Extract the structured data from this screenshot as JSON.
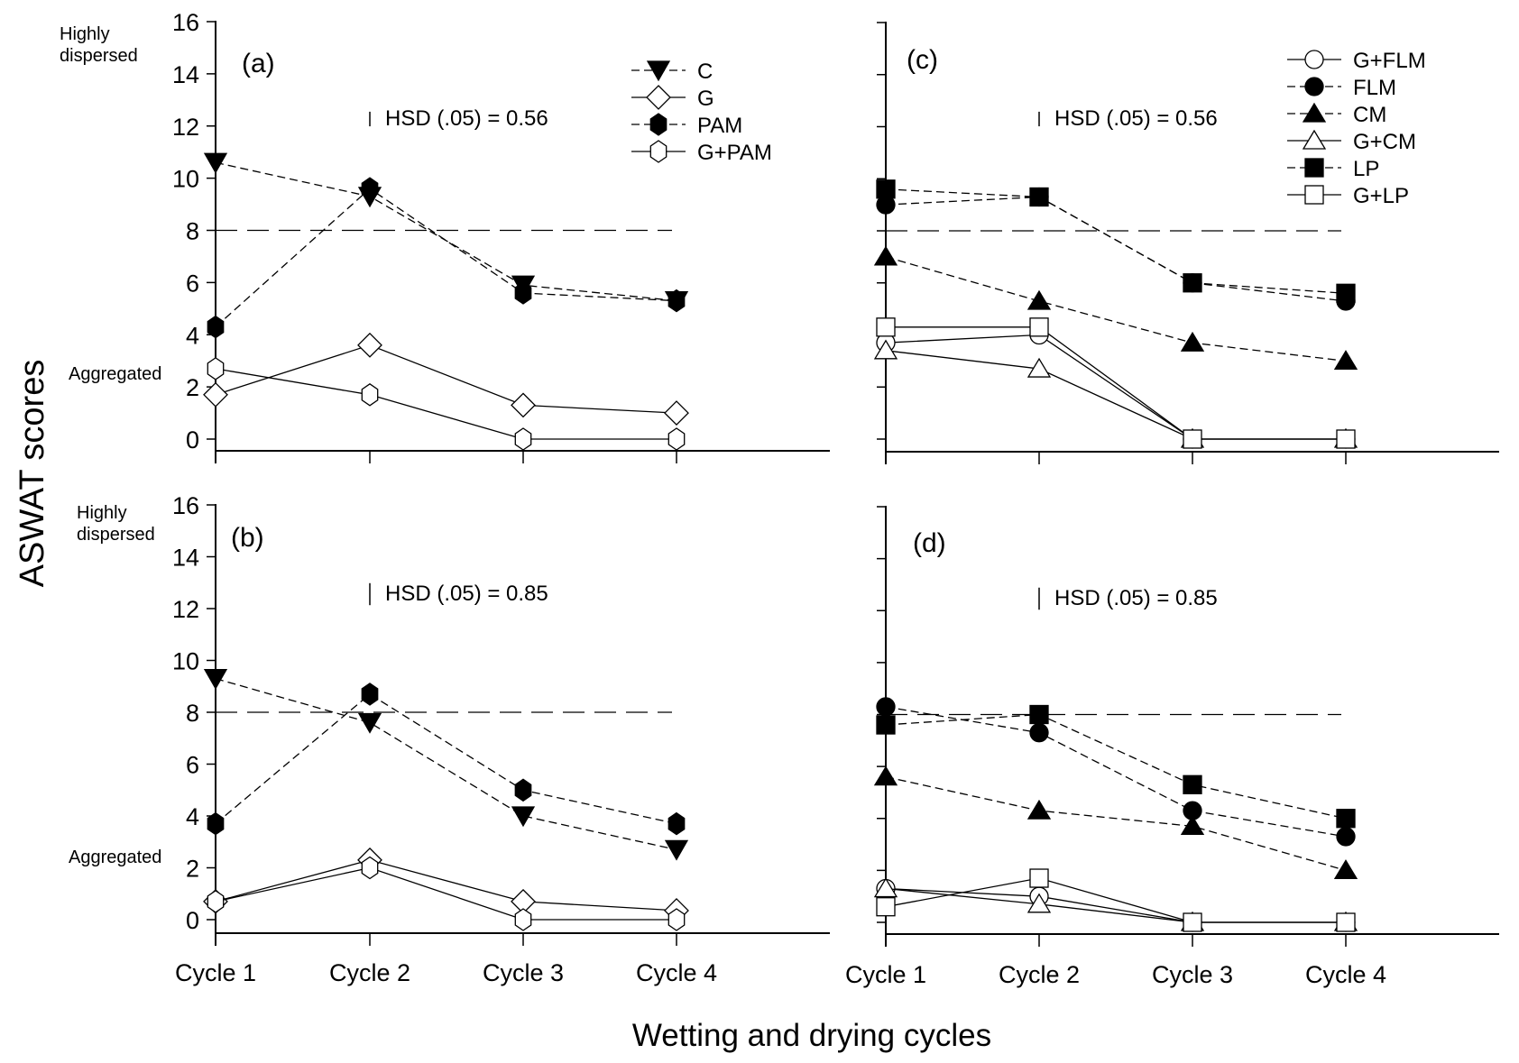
{
  "figure": {
    "ylabel": "ASWAT scores",
    "xlabel": "Wetting and drying cycles",
    "side_labels": {
      "highly_line1": "Highly",
      "highly_line2": "dispersed",
      "aggregated": "Aggregated"
    }
  },
  "chart_data": [
    {
      "id": "a",
      "type": "line",
      "panel_label": "(a)",
      "hsd_label": "HSD (.05) = 0.56",
      "hsd_value": 0.56,
      "categories": [
        "Cycle 1",
        "Cycle 2",
        "Cycle 3",
        "Cycle 4"
      ],
      "ylim": [
        0,
        16
      ],
      "yticks": [
        "0",
        "2",
        "4",
        "6",
        "8",
        "10",
        "12",
        "14",
        "16"
      ],
      "show_ytick_labels": true,
      "show_xtick_labels": false,
      "threshold": 8,
      "legend_position": "top-right",
      "series": [
        {
          "name": "C",
          "marker": "triangle-down",
          "filled": true,
          "line": "dashed",
          "values": [
            10.6,
            9.3,
            5.9,
            5.3
          ]
        },
        {
          "name": "G",
          "marker": "diamond",
          "filled": false,
          "line": "solid",
          "values": [
            1.7,
            3.6,
            1.3,
            1.0
          ]
        },
        {
          "name": "PAM",
          "marker": "hexagon",
          "filled": true,
          "line": "dashed",
          "values": [
            4.3,
            9.6,
            5.6,
            5.3
          ]
        },
        {
          "name": "G+PAM",
          "marker": "hexagon",
          "filled": false,
          "line": "solid",
          "values": [
            2.7,
            1.7,
            0.0,
            0.0
          ]
        }
      ]
    },
    {
      "id": "b",
      "type": "line",
      "panel_label": "(b)",
      "hsd_label": "HSD (.05) = 0.85",
      "hsd_value": 0.85,
      "categories": [
        "Cycle 1",
        "Cycle 2",
        "Cycle 3",
        "Cycle 4"
      ],
      "ylim": [
        0,
        16
      ],
      "yticks": [
        "0",
        "2",
        "4",
        "6",
        "8",
        "10",
        "12",
        "14",
        "16"
      ],
      "show_ytick_labels": true,
      "show_xtick_labels": true,
      "threshold": 8,
      "legend_position": "none",
      "series": [
        {
          "name": "C",
          "marker": "triangle-down",
          "filled": true,
          "line": "dashed",
          "values": [
            9.3,
            7.6,
            4.0,
            2.7
          ]
        },
        {
          "name": "G",
          "marker": "diamond",
          "filled": false,
          "line": "solid",
          "values": [
            0.7,
            2.3,
            0.7,
            0.35
          ]
        },
        {
          "name": "PAM",
          "marker": "hexagon",
          "filled": true,
          "line": "dashed",
          "values": [
            3.7,
            8.7,
            5.0,
            3.7
          ]
        },
        {
          "name": "G+PAM",
          "marker": "hexagon",
          "filled": false,
          "line": "solid",
          "values": [
            0.7,
            2.0,
            0.0,
            0.0
          ]
        }
      ]
    },
    {
      "id": "c",
      "type": "line",
      "panel_label": "(c)",
      "hsd_label": "HSD (.05) = 0.56",
      "hsd_value": 0.56,
      "categories": [
        "Cycle 1",
        "Cycle 2",
        "Cycle 3",
        "Cycle 4"
      ],
      "ylim": [
        0,
        16
      ],
      "yticks": [
        "0",
        "2",
        "4",
        "6",
        "8",
        "10",
        "12",
        "14",
        "16"
      ],
      "show_ytick_labels": false,
      "show_xtick_labels": false,
      "threshold": 8,
      "legend_position": "top-right",
      "series": [
        {
          "name": "G+FLM",
          "marker": "circle",
          "filled": false,
          "line": "solid",
          "values": [
            3.7,
            4.0,
            0.0,
            0.0
          ]
        },
        {
          "name": "FLM",
          "marker": "circle",
          "filled": true,
          "line": "dashed",
          "values": [
            9.0,
            9.3,
            6.0,
            5.3
          ]
        },
        {
          "name": "CM",
          "marker": "triangle-up",
          "filled": true,
          "line": "dashed",
          "values": [
            7.0,
            5.3,
            3.7,
            3.0
          ]
        },
        {
          "name": "G+CM",
          "marker": "triangle-up",
          "filled": false,
          "line": "solid",
          "values": [
            3.4,
            2.7,
            0.0,
            0.0
          ]
        },
        {
          "name": "LP",
          "marker": "square",
          "filled": true,
          "line": "dashed",
          "values": [
            9.6,
            9.3,
            6.0,
            5.6
          ]
        },
        {
          "name": "G+LP",
          "marker": "square",
          "filled": false,
          "line": "solid",
          "values": [
            4.3,
            4.3,
            0.0,
            0.0
          ]
        }
      ]
    },
    {
      "id": "d",
      "type": "line",
      "panel_label": "(d)",
      "hsd_label": "HSD (.05) = 0.85",
      "hsd_value": 0.85,
      "categories": [
        "Cycle 1",
        "Cycle 2",
        "Cycle 3",
        "Cycle 4"
      ],
      "ylim": [
        0,
        16
      ],
      "yticks": [
        "0",
        "2",
        "4",
        "6",
        "8",
        "10",
        "12",
        "14",
        "16"
      ],
      "show_ytick_labels": false,
      "show_xtick_labels": true,
      "threshold": 8,
      "legend_position": "none",
      "series": [
        {
          "name": "G+FLM",
          "marker": "circle",
          "filled": false,
          "line": "solid",
          "values": [
            1.3,
            1.0,
            0.0,
            0.0
          ]
        },
        {
          "name": "FLM",
          "marker": "circle",
          "filled": true,
          "line": "dashed",
          "values": [
            8.3,
            7.3,
            4.3,
            3.3
          ]
        },
        {
          "name": "CM",
          "marker": "triangle-up",
          "filled": true,
          "line": "dashed",
          "values": [
            5.6,
            4.3,
            3.7,
            2.0
          ]
        },
        {
          "name": "G+CM",
          "marker": "triangle-up",
          "filled": false,
          "line": "solid",
          "values": [
            1.3,
            0.7,
            0.0,
            0.0
          ]
        },
        {
          "name": "LP",
          "marker": "square",
          "filled": true,
          "line": "dashed",
          "values": [
            7.6,
            8.0,
            5.3,
            4.0
          ]
        },
        {
          "name": "G+LP",
          "marker": "square",
          "filled": false,
          "line": "solid",
          "values": [
            0.6,
            1.7,
            0.0,
            0.0
          ]
        }
      ]
    }
  ]
}
